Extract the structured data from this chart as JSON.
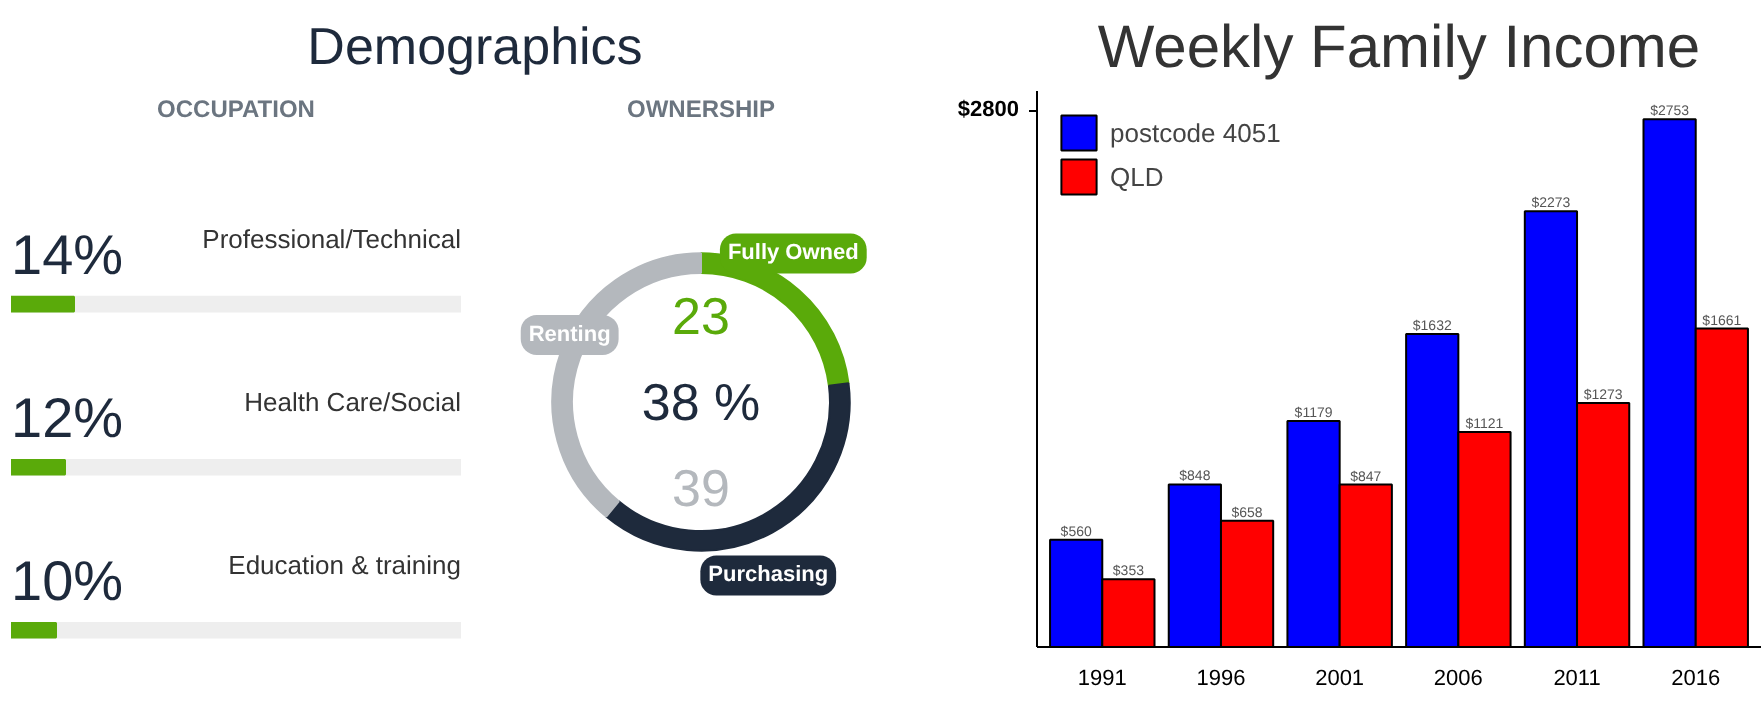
{
  "chart_data": [
    {
      "type": "bar",
      "title": "Demographics",
      "subtitle": "OCCUPATION",
      "orientation": "horizontal",
      "categories": [
        "Professional/Technical",
        "Health Care/Social",
        "Education & training"
      ],
      "values": [
        14,
        12,
        10
      ],
      "value_labels": [
        "14%",
        "12%",
        "10%"
      ],
      "color": "#5aaa0a",
      "xlim": [
        0,
        100
      ],
      "tick_labels": false,
      "grid": false
    },
    {
      "type": "donut",
      "subtitle": "OWNERSHIP",
      "categories": [
        "Fully Owned",
        "Purchasing",
        "Renting"
      ],
      "values": [
        23,
        38,
        39
      ],
      "colors": [
        "#5aaa0a",
        "#1e2a3c",
        "#b4b8bd"
      ],
      "annotations": [
        "23",
        "38 %",
        "39"
      ]
    },
    {
      "type": "bar",
      "title": "Weekly Family Income",
      "categories": [
        "1991",
        "1996",
        "2001",
        "2006",
        "2011",
        "2016"
      ],
      "series": [
        {
          "name": "postcode 4051",
          "color": "#0000ff",
          "values": [
            560,
            848,
            1179,
            1632,
            2273,
            2753
          ],
          "value_labels": [
            "$560",
            "$848",
            "$1179",
            "$1632",
            "$2273",
            "$2753"
          ]
        },
        {
          "name": "QLD",
          "color": "#ff0000",
          "values": [
            353,
            658,
            847,
            1121,
            1273,
            1661
          ],
          "value_labels": [
            "$353",
            "$658",
            "$847",
            "$1121",
            "$1273",
            "$1661"
          ]
        }
      ],
      "ylim": [
        0,
        2900
      ],
      "yticks": [
        {
          "value": 2800,
          "label": "$2800"
        }
      ],
      "legend": "top left",
      "grid": false
    }
  ]
}
